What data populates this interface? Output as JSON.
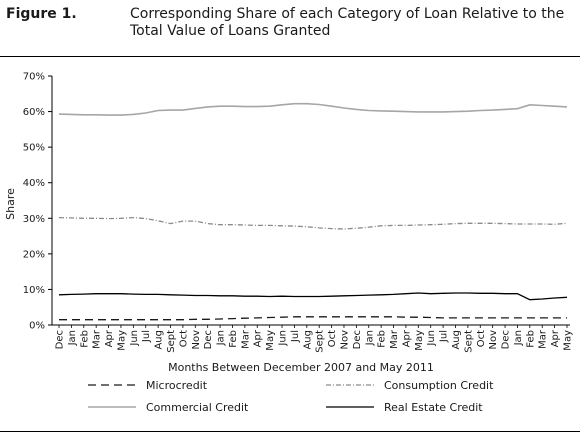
{
  "figure": {
    "label": "Figure 1.",
    "title": "Corresponding Share of each Category of Loan Relative to the Total Value of Loans Granted"
  },
  "chart_data": {
    "type": "line",
    "title": "Corresponding Share of each Category of Loan Relative to the Total Value of Loans Granted",
    "xlabel": "Months Between December 2007 and May 2011",
    "ylabel": "Share",
    "ylim": [
      0,
      70
    ],
    "yticks": [
      "0%",
      "10%",
      "20%",
      "30%",
      "40%",
      "50%",
      "60%",
      "70%"
    ],
    "grid": false,
    "legend_position": "bottom",
    "categories": [
      "Dec",
      "Jan",
      "Feb",
      "Mar",
      "Apr",
      "May",
      "Jun",
      "Jul",
      "Aug",
      "Sept",
      "Oct",
      "Nov",
      "Dec",
      "Jan",
      "Feb",
      "Mar",
      "Apr",
      "May",
      "Jun",
      "Jul",
      "Aug",
      "Sept",
      "Oct",
      "Nov",
      "Dec",
      "Jan",
      "Feb",
      "Mar",
      "Apr",
      "May",
      "Jun",
      "Jul",
      "Aug",
      "Sept",
      "Oct",
      "Nov",
      "Dec",
      "Jan",
      "Feb",
      "Mar",
      "Apr",
      "May"
    ],
    "series": [
      {
        "name": "Microcredit",
        "color": "#1a1a1a",
        "dash": "long-dash",
        "values": [
          1.5,
          1.5,
          1.5,
          1.5,
          1.5,
          1.5,
          1.5,
          1.5,
          1.5,
          1.5,
          1.5,
          1.6,
          1.6,
          1.7,
          1.8,
          1.9,
          2.0,
          2.1,
          2.2,
          2.3,
          2.3,
          2.3,
          2.3,
          2.3,
          2.3,
          2.3,
          2.3,
          2.3,
          2.2,
          2.2,
          2.1,
          2.0,
          2.0,
          2.0,
          2.0,
          2.0,
          2.0,
          2.0,
          2.0,
          2.0,
          2.0,
          2.0
        ]
      },
      {
        "name": "Consumption Credit",
        "color": "#8a8a8a",
        "dash": "dash-dot",
        "values": [
          30.2,
          30.1,
          30.0,
          30.0,
          29.9,
          30.0,
          30.2,
          29.9,
          29.3,
          28.5,
          29.2,
          29.2,
          28.5,
          28.2,
          28.2,
          28.1,
          28.0,
          28.0,
          27.9,
          27.8,
          27.6,
          27.3,
          27.1,
          27.0,
          27.2,
          27.5,
          27.9,
          28.0,
          28.0,
          28.1,
          28.2,
          28.3,
          28.5,
          28.6,
          28.6,
          28.6,
          28.5,
          28.4,
          28.4,
          28.4,
          28.3,
          28.6
        ]
      },
      {
        "name": "Commercial Credit",
        "color": "#a6a6a6",
        "dash": "solid",
        "values": [
          59.3,
          59.2,
          59.1,
          59.1,
          59.0,
          59.0,
          59.2,
          59.6,
          60.3,
          60.4,
          60.4,
          60.9,
          61.3,
          61.5,
          61.5,
          61.4,
          61.4,
          61.5,
          61.9,
          62.2,
          62.2,
          62.0,
          61.5,
          61.0,
          60.6,
          60.3,
          60.2,
          60.1,
          60.0,
          59.9,
          59.9,
          59.9,
          60.0,
          60.1,
          60.3,
          60.4,
          60.6,
          60.8,
          61.9,
          61.7,
          61.5,
          61.3
        ]
      },
      {
        "name": "Real Estate Credit",
        "color": "#000000",
        "dash": "solid",
        "values": [
          8.5,
          8.6,
          8.7,
          8.8,
          8.8,
          8.8,
          8.7,
          8.6,
          8.6,
          8.5,
          8.4,
          8.3,
          8.3,
          8.2,
          8.2,
          8.1,
          8.1,
          8.0,
          8.1,
          8.0,
          8.0,
          8.0,
          8.1,
          8.2,
          8.3,
          8.4,
          8.5,
          8.6,
          8.8,
          9.0,
          8.8,
          8.9,
          9.0,
          9.0,
          8.9,
          8.9,
          8.8,
          8.8,
          7.1,
          7.3,
          7.6,
          7.8
        ]
      }
    ]
  }
}
